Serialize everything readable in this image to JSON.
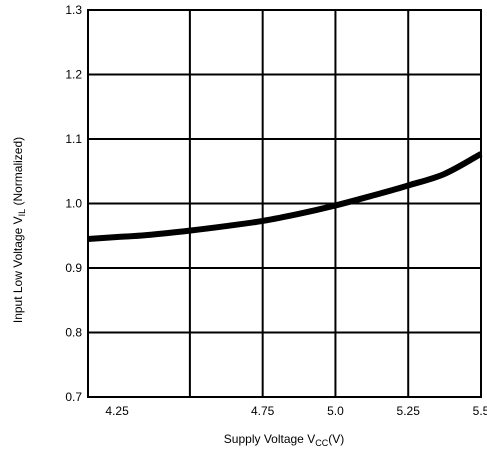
{
  "chart_data": {
    "type": "line",
    "title": "",
    "xlabel": {
      "main": "Supply Voltage V",
      "sub": "CC",
      "suffix": "(V)"
    },
    "ylabel": {
      "main": "Input Low Voltage V",
      "sub": "IL",
      "suffix": " (Normalized)"
    },
    "xlim": [
      4.15,
      5.5
    ],
    "ylim": [
      0.7,
      1.3
    ],
    "x_ticks": [
      {
        "value": 4.25,
        "label": "4.25"
      },
      {
        "value": 4.75,
        "label": "4.75"
      },
      {
        "value": 5.0,
        "label": "5.0"
      },
      {
        "value": 5.25,
        "label": "5.25"
      },
      {
        "value": 5.5,
        "label": "5.5"
      }
    ],
    "x_gridlines": [
      4.5,
      4.75,
      5.0,
      5.25,
      5.5
    ],
    "y_ticks": [
      {
        "value": 0.7,
        "label": "0.7"
      },
      {
        "value": 0.8,
        "label": "0.8"
      },
      {
        "value": 0.9,
        "label": "0.9"
      },
      {
        "value": 1.0,
        "label": "1.0"
      },
      {
        "value": 1.1,
        "label": "1.1"
      },
      {
        "value": 1.2,
        "label": "1.2"
      },
      {
        "value": 1.3,
        "label": "1.3"
      }
    ],
    "grid": true,
    "series": [
      {
        "color": "#000000",
        "x": [
          4.15,
          4.25,
          4.35,
          4.5,
          4.625,
          4.75,
          4.875,
          5.0,
          5.125,
          5.25,
          5.375,
          5.5
        ],
        "y": [
          0.945,
          0.948,
          0.951,
          0.958,
          0.965,
          0.973,
          0.984,
          0.997,
          1.012,
          1.028,
          1.046,
          1.077
        ]
      }
    ]
  }
}
